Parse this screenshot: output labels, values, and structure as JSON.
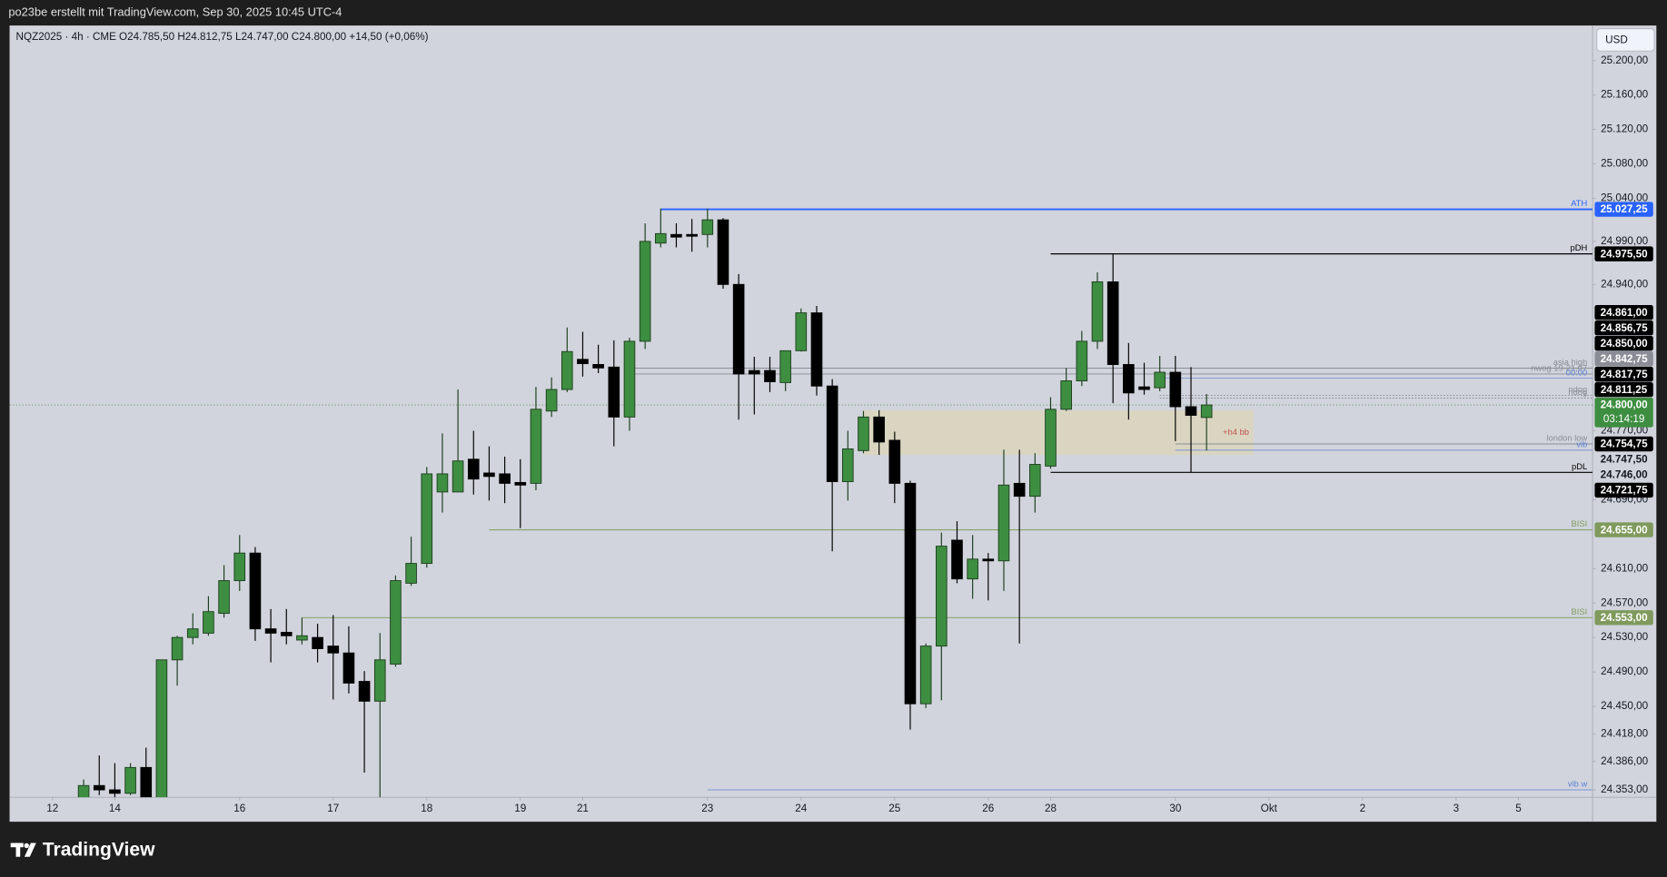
{
  "header": "po23be erstellt mit TradingView.com, Sep 30, 2025 10:45 UTC-4",
  "footer": "TradingView",
  "chart_data": {
    "type": "candlestick",
    "legend": {
      "symbol": "NQZ2025 · 4h · CME",
      "ohlc": "O24.785,50 H24.812,75 L24.747,00 C24.800,00 +14,50 (+0,06%)"
    },
    "currency": "USD",
    "xlim": [
      -4.75,
      96.75
    ],
    "ylim": [
      24344.4,
      25240.7
    ],
    "xticks": [
      {
        "value": -2,
        "label": "12"
      },
      {
        "value": 2,
        "label": "14"
      },
      {
        "value": 10,
        "label": "16"
      },
      {
        "value": 16,
        "label": "17"
      },
      {
        "value": 22,
        "label": "18"
      },
      {
        "value": 28,
        "label": "19"
      },
      {
        "value": 32,
        "label": "21"
      },
      {
        "value": 40,
        "label": "23"
      },
      {
        "value": 46,
        "label": "24"
      },
      {
        "value": 52,
        "label": "25"
      },
      {
        "value": 58,
        "label": "26"
      },
      {
        "value": 62,
        "label": "28"
      },
      {
        "value": 70,
        "label": "30"
      },
      {
        "value": 76,
        "label": "Okt"
      },
      {
        "value": 82,
        "label": "2"
      },
      {
        "value": 88,
        "label": "3"
      },
      {
        "value": 92,
        "label": "5"
      }
    ],
    "yticks": [
      {
        "value": 25200,
        "label": "25.200,00"
      },
      {
        "value": 25160,
        "label": "25.160,00"
      },
      {
        "value": 25120,
        "label": "25.120,00"
      },
      {
        "value": 25080,
        "label": "25.080,00"
      },
      {
        "value": 25040,
        "label": "25.040,00"
      },
      {
        "value": 24990,
        "label": "24.990,00"
      },
      {
        "value": 24940,
        "label": "24.940,00"
      },
      {
        "value": 24770,
        "label": "24.770,00"
      },
      {
        "value": 24690,
        "label": "24.690,00"
      },
      {
        "value": 24610,
        "label": "24.610,00"
      },
      {
        "value": 24570,
        "label": "24.570,00"
      },
      {
        "value": 24530,
        "label": "24.530,00"
      },
      {
        "value": 24490,
        "label": "24.490,00"
      },
      {
        "value": 24450,
        "label": "24.450,00"
      },
      {
        "value": 24418,
        "label": "24.418,00"
      },
      {
        "value": 24386,
        "label": "24.386,00"
      },
      {
        "value": 24353,
        "label": "24.353,00"
      }
    ],
    "candles": {
      "up_color": "#3e8e41",
      "down_color": "#000000",
      "border_color": "#1d3f1f",
      "open": [
        24340,
        24358,
        24353,
        24349,
        24379,
        24335,
        24504,
        24530,
        24535,
        24558,
        24596,
        24628,
        24540,
        24536,
        24527,
        24530,
        24520,
        24512,
        24479,
        24456,
        24499,
        24593,
        24616,
        24699,
        24699,
        24737,
        24721,
        24720,
        24710,
        24709,
        24793,
        24818,
        24853,
        24847,
        24844,
        24786,
        24874,
        24988,
        24998,
        24998,
        24998,
        25015,
        24940,
        24840,
        24840,
        24826,
        24863,
        24907,
        24822,
        24711,
        24747,
        24786,
        24759,
        24709,
        24453,
        24520,
        24643,
        24598,
        24621,
        24619,
        24709,
        24694,
        24729,
        24795,
        24828,
        24874,
        24943,
        24847,
        24821,
        24820,
        24838,
        24798,
        24785.5
      ],
      "high": [
        24365,
        24393,
        24384,
        24384,
        24402,
        24504,
        24532,
        24558,
        24578,
        24614,
        24649,
        24635,
        24563,
        24563,
        24553,
        24546,
        24556,
        24543,
        24491,
        24535,
        24602,
        24647,
        24728,
        24767,
        24818,
        24770,
        24752,
        24740,
        24737,
        24821,
        24832,
        24890,
        24885,
        24870,
        24875,
        24878,
        25011,
        25028,
        25011,
        25016,
        25028,
        25017,
        24952,
        24856,
        24856,
        24863,
        24912,
        24915,
        24830,
        24770,
        24793,
        24794,
        24769,
        24712,
        24523,
        24652,
        24665,
        24649,
        24628,
        24748,
        24748,
        24744,
        24809,
        24843,
        24886,
        24954,
        24975.5,
        24872,
        24849,
        24857,
        24857,
        24844,
        24812.75
      ],
      "low": [
        24330,
        24347,
        24344,
        24347,
        24325,
        24320,
        24474,
        24522,
        24532,
        24553,
        24584,
        24526,
        24501,
        24522,
        24522,
        24501,
        24458,
        24465,
        24373,
        24344,
        24496,
        24590,
        24611,
        24675,
        24699,
        24696,
        24689,
        24686,
        24657,
        24701,
        24786,
        24815,
        24833,
        24837,
        24752,
        24770,
        24865,
        24983,
        24983,
        24978,
        24983,
        24935,
        24783,
        24789,
        24815,
        24816,
        24862,
        24811,
        24630,
        24689,
        24744,
        24742,
        24686,
        24423,
        24448,
        24457,
        24593,
        24575,
        24573,
        24584,
        24523,
        24675,
        24726,
        24793,
        24822,
        24865,
        24802,
        24783,
        24812,
        24816,
        24758,
        24722,
        24747
      ],
      "close": [
        24358,
        24353,
        24349,
        24379,
        24335,
        24504,
        24530,
        24540,
        24560,
        24596,
        24628,
        24540,
        24535,
        24532,
        24532,
        24517,
        24512,
        24477,
        24456,
        24504,
        24596,
        24616,
        24720,
        24720,
        24735,
        24714,
        24717,
        24709,
        24707,
        24795,
        24818,
        24862,
        24848,
        24843,
        24786,
        24874,
        24990,
        24999,
        24995,
        24996,
        25015,
        24940,
        24836,
        24836,
        24827,
        24863,
        24907,
        24822,
        24711,
        24749,
        24786,
        24757,
        24709,
        24453,
        24520,
        24636,
        24598,
        24621,
        24619,
        24707,
        24694,
        24731,
        24795,
        24828,
        24874,
        24943,
        24847,
        24814,
        24818,
        24838,
        24798,
        24788,
        24800
      ]
    },
    "box": {
      "name": "+h4 bb",
      "top": 24793.8,
      "bottom": 24742,
      "start": 50,
      "end": 75,
      "color": "#dcd5bb",
      "label_color": "#c0504d"
    },
    "levels": [
      {
        "name": "ATH",
        "value": 25027.25,
        "start": 37,
        "color": "#2962ff",
        "width": 1.6
      },
      {
        "name": "pDH",
        "value": 24975.5,
        "start": 62,
        "color": "#000000",
        "width": 1
      },
      {
        "name": "asia high",
        "value": 24842.75,
        "start": 35,
        "color": "#8a8d96",
        "width": 0.8
      },
      {
        "name": "nwog 19-21.07",
        "value": 24836,
        "start": 35,
        "color": "#8a8d96",
        "width": 0.8
      },
      {
        "name": "00:00",
        "value": 24831,
        "start": 69,
        "color": "#5b7fd6",
        "width": 0.6
      },
      {
        "name": "ndog",
        "value": 24811.25,
        "start": 69,
        "color": "#8a8d96",
        "width": 0.8,
        "dotted": true
      },
      {
        "name": "ndog",
        "value": 24808,
        "start": 69,
        "color": "#8a8d96",
        "width": 0.8,
        "dotted": true
      },
      {
        "name": "london low",
        "value": 24754.75,
        "start": 70,
        "color": "#8a8d96",
        "width": 0.8
      },
      {
        "name": "vib",
        "value": 24747.5,
        "start": 70,
        "color": "#5b7fd6",
        "width": 0.6
      },
      {
        "name": "pDL",
        "value": 24721.75,
        "start": 62,
        "color": "#000000",
        "width": 1
      },
      {
        "name": "BISI",
        "value": 24655,
        "start": 26,
        "color": "#7f9a5c",
        "width": 0.8
      },
      {
        "name": "BISI",
        "value": 24553,
        "start": 14,
        "color": "#7f9a5c",
        "width": 0.8
      },
      {
        "name": "vib w",
        "value": 24353,
        "start": 40,
        "color": "#5b7fd6",
        "width": 0.6
      }
    ],
    "current_price_line": true,
    "price_tags": [
      {
        "value": 25027.25,
        "label": "25.027,25",
        "bg": "#2962ff",
        "fg": "#ffffff"
      },
      {
        "value": 24975.5,
        "label": "24.975,50",
        "bg": "#000000",
        "fg": "#ffffff"
      },
      {
        "value": 24861,
        "label": "24.861,00",
        "bg": "#000000",
        "fg": "#ffffff"
      },
      {
        "value": 24856.75,
        "label": "24.856,75",
        "bg": "#000000",
        "fg": "#ffffff"
      },
      {
        "value": 24850,
        "label": "24.850,00",
        "bg": "#000000",
        "fg": "#ffffff"
      },
      {
        "value": 24842.75,
        "label": "24.842,75",
        "bg": "#8a8d96",
        "fg": "#ffffff"
      },
      {
        "value": 24817.75,
        "label": "24.817,75",
        "bg": "#000000",
        "fg": "#ffffff"
      },
      {
        "value": 24811.25,
        "label": "24.811,25",
        "bg": "#000000",
        "fg": "#ffffff"
      },
      {
        "value": 24800,
        "label": "24.800,00",
        "bg": "#3e8e41",
        "fg": "#ffffff",
        "countdown": "03:14:19"
      },
      {
        "value": 24754.75,
        "label": "24.754,75",
        "bg": "#000000",
        "fg": "#ffffff"
      },
      {
        "value": 24747.5,
        "label": "24.747,50",
        "bg": "#d1d4dc",
        "fg": "#131722"
      },
      {
        "value": 24746,
        "label": "24.746,00",
        "bg": "#d1d4dc",
        "fg": "#131722"
      },
      {
        "value": 24721.75,
        "label": "24.721,75",
        "bg": "#000000",
        "fg": "#ffffff"
      },
      {
        "value": 24655,
        "label": "24.655,00",
        "bg": "#7f9a5c",
        "fg": "#ffffff"
      },
      {
        "value": 24553,
        "label": "24.553,00",
        "bg": "#7f9a5c",
        "fg": "#ffffff"
      }
    ]
  }
}
